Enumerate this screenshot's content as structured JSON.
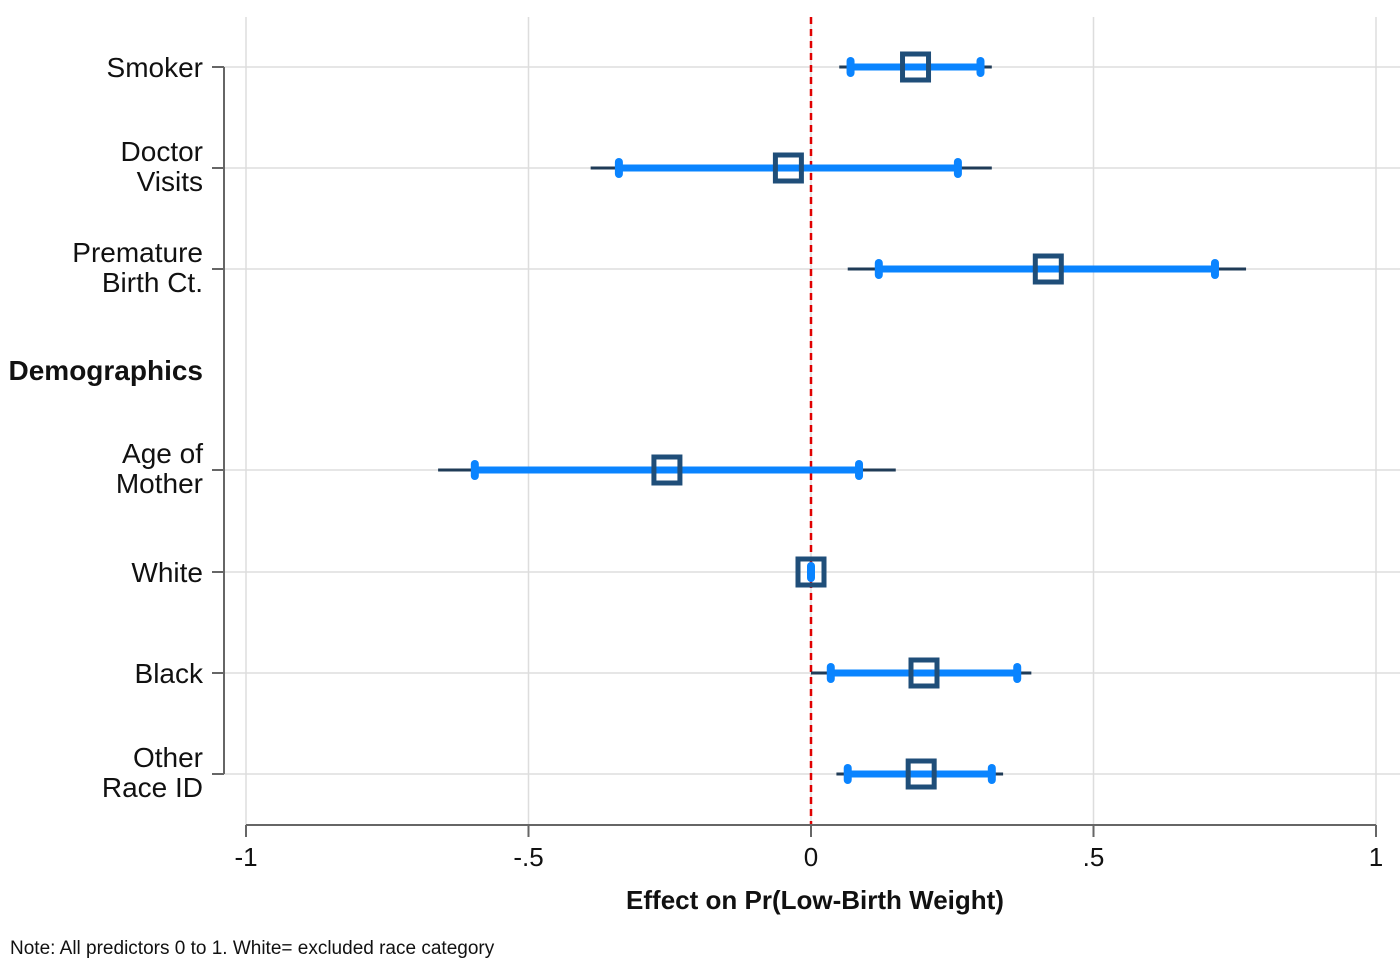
{
  "chart_data": {
    "type": "coefficient-plot",
    "xlabel": "Effect on Pr(Low-Birth Weight)",
    "xlim": [
      -1,
      1
    ],
    "xticks": [
      -1,
      -0.5,
      0,
      0.5,
      1
    ],
    "xtick_labels": [
      "-1",
      "-.5",
      "0",
      ".5",
      "1"
    ],
    "reference_line": 0,
    "grid": true,
    "colors": {
      "point": "#1f4e79",
      "inner_ci": "#0a84ff",
      "outer_ci": "#1f3b57",
      "reference": "#e00000",
      "grid": "#dddddd",
      "axis": "#666666"
    },
    "rows": [
      {
        "label": [
          "Smoker"
        ],
        "estimate": 0.185,
        "ci_inner": [
          0.07,
          0.3
        ],
        "ci_outer": [
          0.05,
          0.32
        ]
      },
      {
        "label": [
          "Doctor",
          "Visits"
        ],
        "estimate": -0.04,
        "ci_inner": [
          -0.34,
          0.26
        ],
        "ci_outer": [
          -0.39,
          0.32
        ]
      },
      {
        "label": [
          "Premature",
          "Birth Ct."
        ],
        "estimate": 0.42,
        "ci_inner": [
          0.12,
          0.715
        ],
        "ci_outer": [
          0.065,
          0.77
        ]
      },
      {
        "label": [
          "Demographics"
        ],
        "header": true
      },
      {
        "label": [
          "Age of",
          "Mother"
        ],
        "estimate": -0.255,
        "ci_inner": [
          -0.595,
          0.085
        ],
        "ci_outer": [
          -0.66,
          0.15
        ]
      },
      {
        "label": [
          "White"
        ],
        "estimate": 0.0,
        "ci_inner": [
          0.0,
          0.0
        ],
        "ci_outer": [
          0.0,
          0.0
        ]
      },
      {
        "label": [
          "Black"
        ],
        "estimate": 0.2,
        "ci_inner": [
          0.035,
          0.365
        ],
        "ci_outer": [
          0.0,
          0.39
        ]
      },
      {
        "label": [
          "Other",
          "Race ID"
        ],
        "estimate": 0.195,
        "ci_inner": [
          0.065,
          0.32
        ],
        "ci_outer": [
          0.045,
          0.34
        ]
      }
    ]
  },
  "note": "Note: All predictors 0 to 1. White= excluded race category"
}
